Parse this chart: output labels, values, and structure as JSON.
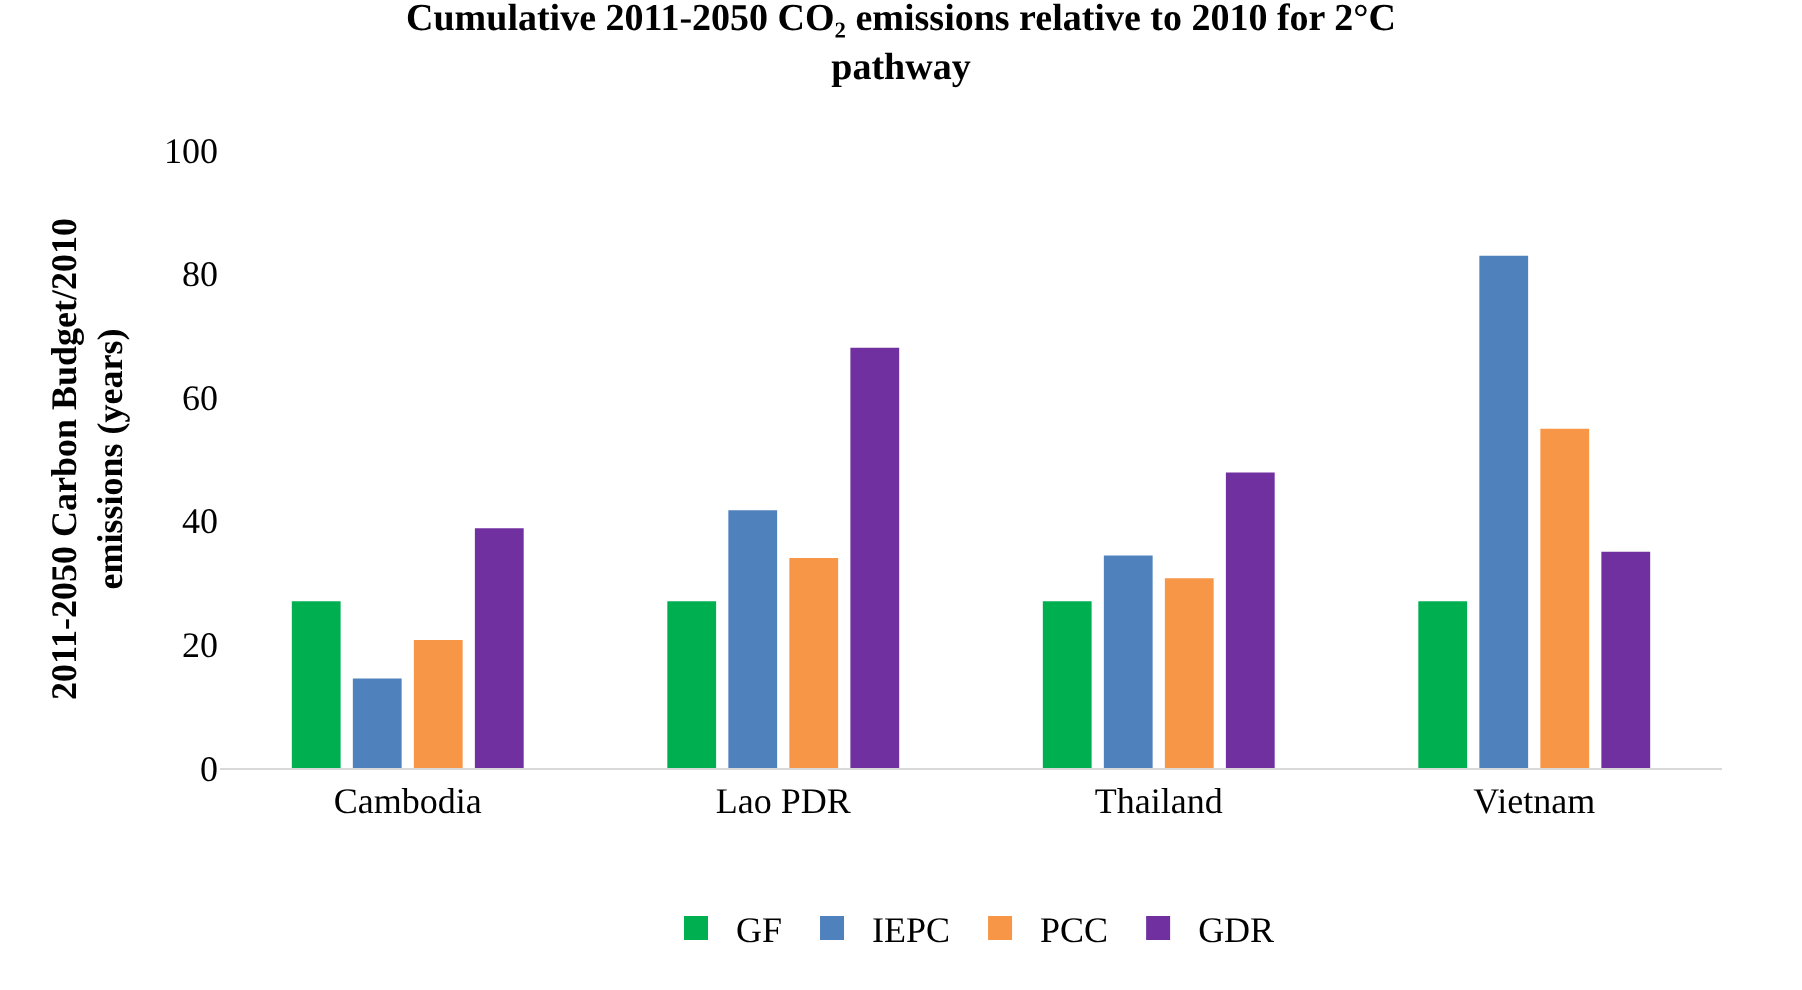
{
  "chart_data": {
    "type": "bar",
    "title": "Cumulative 2011-2050 CO₂ emissions relative to 2010 for 2°C pathway",
    "ylabel": "2011-2050 Carbon Budget/2010 emissions (years)",
    "categories": [
      "Cambodia",
      "Lao PDR",
      "Thailand",
      "Vietnam"
    ],
    "series": [
      {
        "name": "GF",
        "color": "#00b050",
        "values": [
          27,
          27,
          27,
          27
        ]
      },
      {
        "name": "IEPC",
        "color": "#4f81bd",
        "values": [
          14.5,
          41.7,
          34.4,
          82.9
        ]
      },
      {
        "name": "PCC",
        "color": "#f79646",
        "values": [
          20.7,
          34,
          30.7,
          54.9
        ]
      },
      {
        "name": "GDR",
        "color": "#7030a0",
        "values": [
          38.8,
          68,
          47.8,
          35
        ]
      }
    ],
    "ylim": [
      0,
      100
    ],
    "yticks": [
      0,
      20,
      40,
      60,
      80,
      100
    ],
    "grid": false,
    "legend": "bottom"
  }
}
